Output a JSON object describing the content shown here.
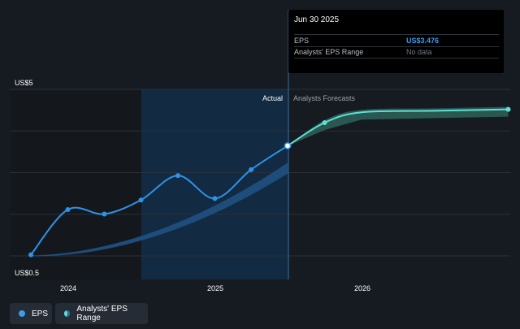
{
  "chart_data": {
    "type": "line",
    "y_axis_labels": [
      "US$5",
      "US$0.5"
    ],
    "ylim": [
      0.5,
      5
    ],
    "x_ticks": [
      "2024",
      "2025",
      "2026"
    ],
    "section_labels": {
      "actual": "Actual",
      "forecast": "Analysts Forecasts"
    },
    "series": [
      {
        "name": "EPS",
        "color": "#2e93e8",
        "points": [
          {
            "x": "2023-09-30",
            "y": 0.53
          },
          {
            "x": "2023-12-31",
            "y": 1.75
          },
          {
            "x": "2024-03-31",
            "y": 1.63
          },
          {
            "x": "2024-06-30",
            "y": 2.01
          },
          {
            "x": "2024-09-30",
            "y": 2.67
          },
          {
            "x": "2024-12-31",
            "y": 2.05
          },
          {
            "x": "2025-03-31",
            "y": 2.83
          },
          {
            "x": "2025-06-30",
            "y": 3.476
          }
        ]
      },
      {
        "name": "Analysts' EPS Range",
        "color": "#5de0d6",
        "points": [
          {
            "x": "2025-06-30",
            "y": 3.476
          },
          {
            "x": "2025-09-30",
            "y": 4.1
          },
          {
            "x": "2025-12-31",
            "y": 4.38
          },
          {
            "x": "2026-06-30",
            "y": 4.42
          },
          {
            "x": "2026-12-31",
            "y": 4.46
          }
        ]
      }
    ]
  },
  "tooltip": {
    "date": "Jun 30 2025",
    "rows": [
      {
        "label": "EPS",
        "value": "US$3.476",
        "value_color": "#3d9bf0"
      },
      {
        "label": "Analysts' EPS Range",
        "value": "No data",
        "value_color": "#6e7681"
      }
    ]
  },
  "legend": [
    {
      "label": "EPS",
      "icon": "eps-dot-icon"
    },
    {
      "label": "Analysts' EPS Range",
      "icon": "range-dot-icon"
    }
  ]
}
